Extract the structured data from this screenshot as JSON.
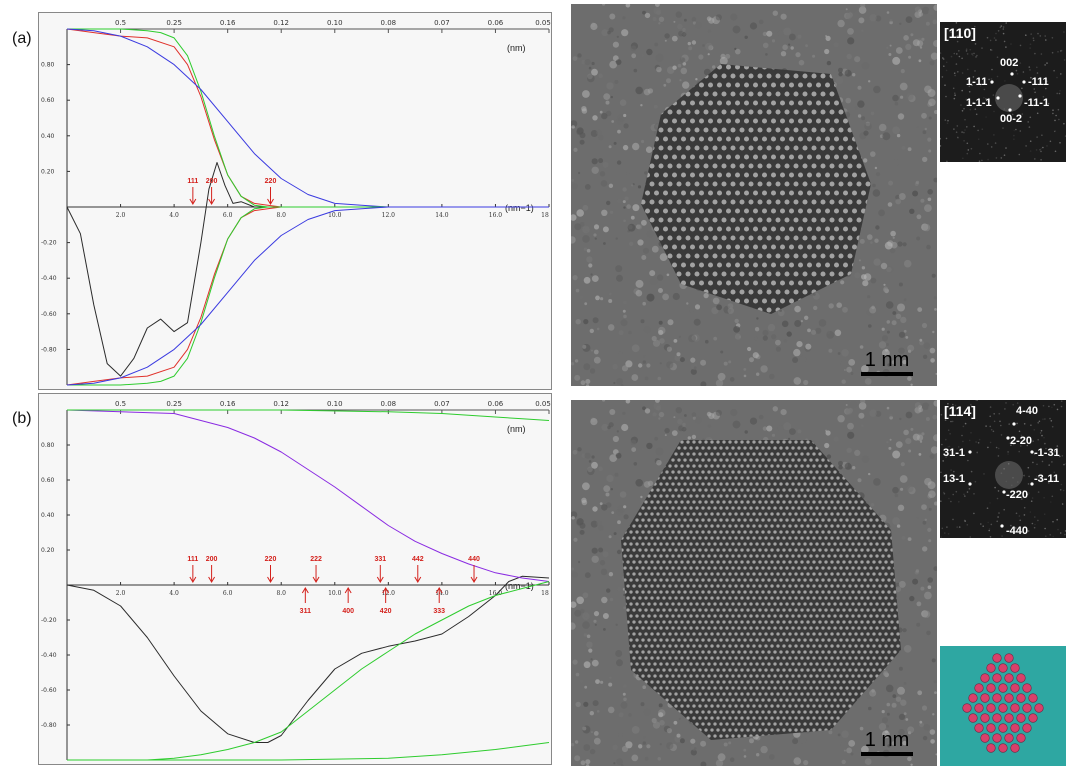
{
  "panel_a": {
    "letter": "(a)",
    "top_ticks": [
      "0.5",
      "0.25",
      "0.16",
      "0.12",
      "0.10",
      "0.08",
      "0.07",
      "0.06",
      "0.05"
    ],
    "bottom_ticks": [
      "2.0",
      "4.0",
      "6.0",
      "8.0",
      "10.0",
      "12.0",
      "14.0",
      "16.0",
      "18"
    ],
    "y_ticks": [
      "0.80",
      "0.60",
      "0.40",
      "0.20",
      "-0.20",
      "-0.40",
      "-0.60",
      "-0.80"
    ],
    "top_unit": "(nm)",
    "bottom_unit": "(nm−1)",
    "reflections_down": [
      {
        "label": "111",
        "k": 4.7
      },
      {
        "label": "200",
        "k": 5.4
      },
      {
        "label": "220",
        "k": 7.6
      }
    ],
    "reflections_up": []
  },
  "panel_b": {
    "letter": "(b)",
    "top_ticks": [
      "0.5",
      "0.25",
      "0.16",
      "0.12",
      "0.10",
      "0.08",
      "0.07",
      "0.06",
      "0.05"
    ],
    "bottom_ticks": [
      "2.0",
      "4.0",
      "6.0",
      "8.0",
      "10.0",
      "12.0",
      "14.0",
      "16.0",
      "18"
    ],
    "y_ticks": [
      "0.80",
      "0.60",
      "0.40",
      "0.20",
      "-0.20",
      "-0.40",
      "-0.60",
      "-0.80"
    ],
    "top_unit": "(nm)",
    "bottom_unit": "(nm−1)",
    "reflections_down": [
      {
        "label": "111",
        "k": 4.7
      },
      {
        "label": "200",
        "k": 5.4
      },
      {
        "label": "220",
        "k": 7.6
      },
      {
        "label": "222",
        "k": 9.3
      },
      {
        "label": "331",
        "k": 11.7
      },
      {
        "label": "442",
        "k": 13.1
      },
      {
        "label": "440",
        "k": 15.2
      }
    ],
    "reflections_up": [
      {
        "label": "311",
        "k": 8.9
      },
      {
        "label": "400",
        "k": 10.5
      },
      {
        "label": "420",
        "k": 11.9
      },
      {
        "label": "333",
        "k": 13.9
      }
    ]
  },
  "tem_a": {
    "scale_bar": "1 nm"
  },
  "tem_b": {
    "scale_bar": "1 nm"
  },
  "fft_a": {
    "zone": "[110]",
    "spots": [
      "002",
      "1-11",
      "-111",
      "1-1-1",
      "-11-1",
      "00-2"
    ]
  },
  "fft_b": {
    "zone": "[114]",
    "spots": [
      "4-40",
      "2-20",
      "31-1",
      "-1-31",
      "13-1",
      "-3-11",
      "-220",
      "-440"
    ]
  },
  "chart_data": [
    {
      "type": "line",
      "panel": "a",
      "xlabel": "(nm−1)",
      "x2label": "(nm)",
      "xlim": [
        0,
        18
      ],
      "ylim": [
        -1,
        1
      ],
      "grid": false,
      "series_colors": [
        "#2b2b2b",
        "#e0312b",
        "#2ecc2e",
        "#3a3ae0"
      ],
      "series": [
        {
          "x": [
            0,
            0.5,
            1,
            1.5,
            2,
            2.5,
            3,
            3.5,
            4,
            4.5,
            5,
            5.3,
            5.6,
            5.9,
            6.2,
            6.5,
            7,
            8,
            9,
            10,
            12,
            18
          ],
          "y": [
            0,
            -0.15,
            -0.55,
            -0.88,
            -0.95,
            -0.85,
            -0.68,
            -0.63,
            -0.7,
            -0.65,
            -0.2,
            0.1,
            0.25,
            0.12,
            0.02,
            0.03,
            0.0,
            0.0,
            0.0,
            0.0,
            0.0,
            0.0
          ]
        },
        {
          "x": [
            0,
            1,
            2,
            3,
            4,
            4.5,
            5,
            5.5,
            6,
            6.5,
            7,
            7.5,
            8,
            18
          ],
          "y": [
            1.0,
            0.98,
            0.96,
            0.95,
            0.9,
            0.8,
            0.62,
            0.38,
            0.18,
            0.06,
            0.02,
            0.01,
            0.0,
            0.0
          ]
        },
        {
          "x": [
            0,
            2,
            3,
            3.5,
            4,
            4.5,
            5,
            5.5,
            6,
            6.5,
            7,
            7.5,
            18
          ],
          "y": [
            1.0,
            1.0,
            0.99,
            0.98,
            0.95,
            0.85,
            0.65,
            0.4,
            0.18,
            0.06,
            0.01,
            0.0,
            0.0
          ]
        },
        {
          "x": [
            0,
            1,
            2,
            3,
            4,
            5,
            6,
            7,
            8,
            9,
            10,
            11,
            12,
            18
          ],
          "y": [
            1.0,
            0.99,
            0.96,
            0.9,
            0.8,
            0.66,
            0.48,
            0.3,
            0.16,
            0.07,
            0.02,
            0.01,
            0.0,
            0.0
          ]
        },
        {
          "x": [
            0,
            1,
            2,
            3,
            4,
            4.5,
            5,
            5.5,
            6,
            6.5,
            7,
            7.5,
            8,
            18
          ],
          "y": [
            -1.0,
            -0.98,
            -0.96,
            -0.95,
            -0.9,
            -0.8,
            -0.62,
            -0.38,
            -0.18,
            -0.06,
            -0.02,
            -0.01,
            0.0,
            0.0
          ]
        },
        {
          "x": [
            0,
            2,
            3,
            3.5,
            4,
            4.5,
            5,
            5.5,
            6,
            6.5,
            7,
            7.5,
            18
          ],
          "y": [
            -1.0,
            -1.0,
            -0.99,
            -0.98,
            -0.95,
            -0.85,
            -0.65,
            -0.4,
            -0.18,
            -0.06,
            -0.01,
            0.0,
            0.0
          ]
        },
        {
          "x": [
            0,
            1,
            2,
            3,
            4,
            5,
            6,
            7,
            8,
            9,
            10,
            11,
            12,
            18
          ],
          "y": [
            -1.0,
            -0.99,
            -0.96,
            -0.9,
            -0.8,
            -0.66,
            -0.48,
            -0.3,
            -0.16,
            -0.07,
            -0.02,
            -0.01,
            0.0,
            0.0
          ]
        }
      ]
    },
    {
      "type": "line",
      "panel": "b",
      "xlabel": "(nm−1)",
      "x2label": "(nm)",
      "xlim": [
        0,
        18
      ],
      "ylim": [
        -1,
        1
      ],
      "grid": false,
      "series_colors": [
        "#2b2b2b",
        "#8a2be2",
        "#2ecc2e"
      ],
      "series": [
        {
          "x": [
            0,
            1,
            2,
            3,
            4,
            5,
            6,
            7,
            7.5,
            8,
            9,
            10,
            11,
            12,
            13,
            14,
            15,
            16,
            16.5,
            17,
            18
          ],
          "y": [
            0,
            -0.03,
            -0.12,
            -0.3,
            -0.52,
            -0.72,
            -0.85,
            -0.9,
            -0.9,
            -0.86,
            -0.66,
            -0.48,
            -0.39,
            -0.35,
            -0.32,
            -0.28,
            -0.18,
            -0.06,
            0.02,
            0.05,
            0.04
          ]
        },
        {
          "x": [
            0,
            2,
            4,
            6,
            7,
            8,
            9,
            10,
            11,
            12,
            13,
            14,
            15,
            16,
            17,
            18
          ],
          "y": [
            1.0,
            0.99,
            0.98,
            0.9,
            0.84,
            0.76,
            0.66,
            0.56,
            0.45,
            0.34,
            0.25,
            0.18,
            0.12,
            0.07,
            0.04,
            0.02
          ]
        },
        {
          "x": [
            3,
            4,
            5,
            6,
            7,
            8,
            9,
            10,
            11,
            12,
            13,
            14,
            15,
            16,
            17,
            18
          ],
          "y": [
            -1.0,
            -0.99,
            -0.97,
            -0.94,
            -0.9,
            -0.84,
            -0.72,
            -0.6,
            -0.48,
            -0.38,
            -0.28,
            -0.2,
            -0.12,
            -0.06,
            -0.02,
            0.02
          ]
        },
        {
          "x": [
            0,
            4,
            8,
            12,
            14,
            16,
            17,
            18
          ],
          "y": [
            1.0,
            1.0,
            1.0,
            0.99,
            0.98,
            0.96,
            0.95,
            0.94
          ]
        },
        {
          "x": [
            0,
            8,
            12,
            14,
            16,
            17,
            18
          ],
          "y": [
            -1.0,
            -1.0,
            -0.99,
            -0.97,
            -0.94,
            -0.92,
            -0.9
          ]
        }
      ]
    }
  ]
}
